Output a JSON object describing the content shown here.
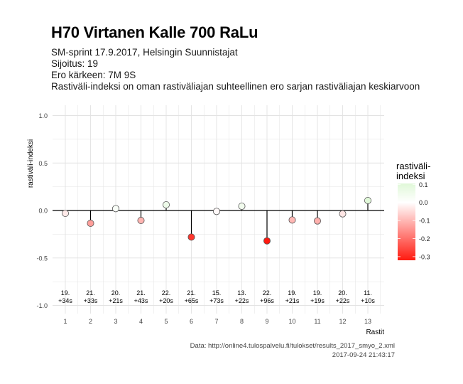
{
  "title": "H70 Virtanen Kalle 700 RaLu",
  "subtitle_lines": [
    "SM-sprint 17.9.2017, Helsingin Suunnistajat",
    "Sijoitus: 19",
    "Ero kärkeen: 7M 9S",
    "Rastiväli-indeksi on oman rastiväliajan suhteellinen ero sarjan rastiväliajan keskiarvoon"
  ],
  "caption_lines": [
    "Data: http://online4.tulospalvelu.fi/tulokset/results_2017_smyo_2.xml",
    "2017-09-24 21:43:17"
  ],
  "colors": {
    "high": "#e0f8d8",
    "mid": "#ffffff",
    "low": "#ff1a10",
    "grid": "#e3e3e3",
    "axis_line": "#000000"
  },
  "chart_data": {
    "type": "scatter",
    "xlabel": "Rastit",
    "ylabel": "rastiväli-indeksi",
    "xlim": [
      0.5,
      13.6
    ],
    "ylim": [
      -1.05,
      1.1
    ],
    "yticks": [
      -1.0,
      -0.5,
      0.0,
      0.5,
      1.0
    ],
    "ytick_labels": [
      "-1.0",
      "-0.5",
      "0.0",
      "0.5",
      "1.0"
    ],
    "x": [
      1,
      2,
      3,
      4,
      5,
      6,
      7,
      8,
      9,
      10,
      11,
      12,
      13
    ],
    "values": [
      -0.03,
      -0.135,
      0.02,
      -0.105,
      0.06,
      -0.28,
      -0.01,
      0.045,
      -0.32,
      -0.1,
      -0.11,
      -0.035,
      0.105
    ],
    "point_labels": [
      [
        "19.",
        "+34s"
      ],
      [
        "21.",
        "+33s"
      ],
      [
        "20.",
        "+21s"
      ],
      [
        "21.",
        "+43s"
      ],
      [
        "22.",
        "+20s"
      ],
      [
        "21.",
        "+65s"
      ],
      [
        "15.",
        "+73s"
      ],
      [
        "13.",
        "+22s"
      ],
      [
        "22.",
        "+96s"
      ],
      [
        "19.",
        "+21s"
      ],
      [
        "19.",
        "+19s"
      ],
      [
        "20.",
        "+22s"
      ],
      [
        "11.",
        "+10s"
      ]
    ],
    "grid": true,
    "legend": {
      "title_lines": [
        "rastiväli-",
        "indeksi"
      ],
      "ticks": [
        0.1,
        0.0,
        -0.1,
        -0.2,
        -0.3
      ],
      "tick_labels": [
        "0.1",
        "0.0",
        "-0.1",
        "-0.2",
        "-0.3"
      ],
      "range": [
        -0.32,
        0.105
      ],
      "placement": "right"
    }
  }
}
